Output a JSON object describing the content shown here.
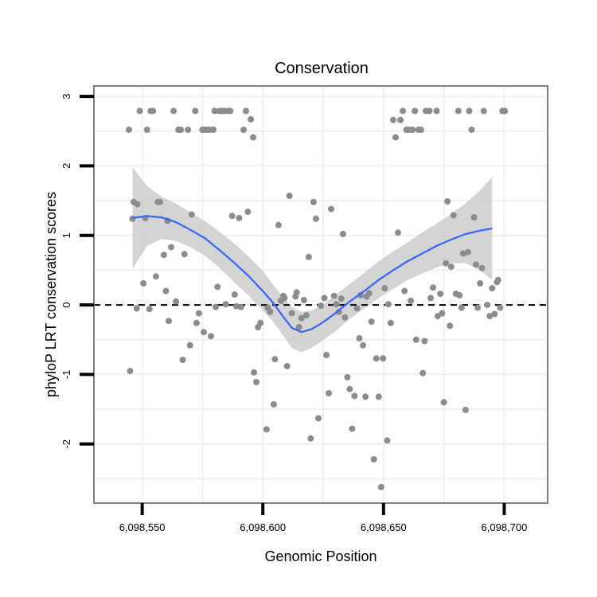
{
  "chart_data": {
    "type": "scatter",
    "title": "Conservation",
    "xlabel": "Genomic Position",
    "ylabel": "phyloP LRT conservation scores",
    "xlim": [
      6098530,
      6098718
    ],
    "ylim": [
      -2.85,
      3.15
    ],
    "x_ticks": [
      {
        "value": 6098550,
        "label": "6,098,550"
      },
      {
        "value": 6098600,
        "label": "6,098,600"
      },
      {
        "value": 6098650,
        "label": "6,098,650"
      },
      {
        "value": 6098700,
        "label": "6,098,700"
      }
    ],
    "y_ticks": [
      {
        "value": -2,
        "label": "-2"
      },
      {
        "value": -1,
        "label": "-1"
      },
      {
        "value": 0,
        "label": "0"
      },
      {
        "value": 1,
        "label": "1"
      },
      {
        "value": 2,
        "label": "2"
      },
      {
        "value": 3,
        "label": "3"
      }
    ],
    "reference_line": {
      "y": 0,
      "style": "dashed"
    },
    "grid": true,
    "colors": {
      "points": "#8c8c8c",
      "smooth_line": "#3366ff",
      "confidence_band": "#cccccc",
      "reference_line": "#000000",
      "panel_border": "#7f7f7f",
      "gridlines": "#f0f0f0"
    },
    "points": [
      {
        "x": 6098544.5,
        "y": 2.52
      },
      {
        "x": 6098545,
        "y": -0.95
      },
      {
        "x": 6098546,
        "y": 1.24
      },
      {
        "x": 6098546.5,
        "y": 1.48
      },
      {
        "x": 6098548,
        "y": 1.45
      },
      {
        "x": 6098547.7,
        "y": -0.05
      },
      {
        "x": 6098549,
        "y": 2.79
      },
      {
        "x": 6098550.5,
        "y": 0.31
      },
      {
        "x": 6098551.3,
        "y": 1.25
      },
      {
        "x": 6098552,
        "y": 2.52
      },
      {
        "x": 6098553,
        "y": -0.06
      },
      {
        "x": 6098553.5,
        "y": 2.79
      },
      {
        "x": 6098554.5,
        "y": 2.79
      },
      {
        "x": 6098555.7,
        "y": 0.41
      },
      {
        "x": 6098556.5,
        "y": 1.48
      },
      {
        "x": 6098557.3,
        "y": 1.48
      },
      {
        "x": 6098559,
        "y": 0.72
      },
      {
        "x": 6098559.8,
        "y": 0.2
      },
      {
        "x": 6098560.5,
        "y": 1.21
      },
      {
        "x": 6098561,
        "y": -0.23
      },
      {
        "x": 6098562,
        "y": 0.83
      },
      {
        "x": 6098563,
        "y": 2.79
      },
      {
        "x": 6098564,
        "y": 0.05
      },
      {
        "x": 6098565,
        "y": 2.52
      },
      {
        "x": 6098566,
        "y": 2.52
      },
      {
        "x": 6098566.8,
        "y": -0.79
      },
      {
        "x": 6098567.5,
        "y": 0.73
      },
      {
        "x": 6098569,
        "y": 2.52
      },
      {
        "x": 6098569.8,
        "y": -0.58
      },
      {
        "x": 6098570.5,
        "y": 1.3
      },
      {
        "x": 6098572,
        "y": 2.79
      },
      {
        "x": 6098572.5,
        "y": -0.26
      },
      {
        "x": 6098573.5,
        "y": -0.12
      },
      {
        "x": 6098575,
        "y": 2.52
      },
      {
        "x": 6098575.5,
        "y": -0.39
      },
      {
        "x": 6098576,
        "y": 2.52
      },
      {
        "x": 6098577,
        "y": 2.52
      },
      {
        "x": 6098578,
        "y": 2.52
      },
      {
        "x": 6098578.5,
        "y": -0.45
      },
      {
        "x": 6098579.5,
        "y": 2.52
      },
      {
        "x": 6098580,
        "y": 2.79
      },
      {
        "x": 6098580.5,
        "y": -0.03
      },
      {
        "x": 6098581.2,
        "y": 0.26
      },
      {
        "x": 6098582,
        "y": 2.79
      },
      {
        "x": 6098583,
        "y": 2.79
      },
      {
        "x": 6098584,
        "y": 2.79
      },
      {
        "x": 6098584.6,
        "y": 0.01
      },
      {
        "x": 6098585.5,
        "y": 2.79
      },
      {
        "x": 6098586.5,
        "y": 2.79
      },
      {
        "x": 6098587.3,
        "y": 1.28
      },
      {
        "x": 6098588.3,
        "y": 0.15
      },
      {
        "x": 6098589,
        "y": -0.02
      },
      {
        "x": 6098590.2,
        "y": 1.25
      },
      {
        "x": 6098591,
        "y": -0.03
      },
      {
        "x": 6098592,
        "y": 2.52
      },
      {
        "x": 6098593,
        "y": 2.79
      },
      {
        "x": 6098593.8,
        "y": 1.34
      },
      {
        "x": 6098595,
        "y": 2.67
      },
      {
        "x": 6098596,
        "y": 2.41
      },
      {
        "x": 6098596.3,
        "y": -0.97
      },
      {
        "x": 6098597.3,
        "y": -1.11
      },
      {
        "x": 6098598,
        "y": -0.32
      },
      {
        "x": 6098599,
        "y": -0.26
      },
      {
        "x": 6098601.5,
        "y": -1.79
      },
      {
        "x": 6098602,
        "y": -0.04
      },
      {
        "x": 6098603,
        "y": -0.1
      },
      {
        "x": 6098604.5,
        "y": -1.43
      },
      {
        "x": 6098605,
        "y": -0.78
      },
      {
        "x": 6098606.5,
        "y": 1.15
      },
      {
        "x": 6098607.5,
        "y": 0.06
      },
      {
        "x": 6098608.5,
        "y": 0.13
      },
      {
        "x": 6098609,
        "y": 0.1
      },
      {
        "x": 6098610,
        "y": -0.88
      },
      {
        "x": 6098611,
        "y": 1.57
      },
      {
        "x": 6098612,
        "y": -0.12
      },
      {
        "x": 6098613.5,
        "y": 0.12
      },
      {
        "x": 6098614,
        "y": 0.18
      },
      {
        "x": 6098615,
        "y": -0.32
      },
      {
        "x": 6098616,
        "y": -0.19
      },
      {
        "x": 6098617,
        "y": 0.07
      },
      {
        "x": 6098618,
        "y": -0.15
      },
      {
        "x": 6098619,
        "y": 0.69
      },
      {
        "x": 6098619.8,
        "y": -1.92
      },
      {
        "x": 6098621,
        "y": 1.48
      },
      {
        "x": 6098622,
        "y": 1.24
      },
      {
        "x": 6098623,
        "y": -1.63
      },
      {
        "x": 6098624,
        "y": -0.01
      },
      {
        "x": 6098625.5,
        "y": 0.1
      },
      {
        "x": 6098626.3,
        "y": -0.72
      },
      {
        "x": 6098627.3,
        "y": -1.27
      },
      {
        "x": 6098628.3,
        "y": 1.38
      },
      {
        "x": 6098629.5,
        "y": 0.13
      },
      {
        "x": 6098630.5,
        "y": 0.01
      },
      {
        "x": 6098631.5,
        "y": -0.1
      },
      {
        "x": 6098632.5,
        "y": 0.09
      },
      {
        "x": 6098633.2,
        "y": 1.02
      },
      {
        "x": 6098634,
        "y": -0.18
      },
      {
        "x": 6098635,
        "y": -1.04
      },
      {
        "x": 6098636,
        "y": -1.21
      },
      {
        "x": 6098637,
        "y": -1.78
      },
      {
        "x": 6098638,
        "y": -1.31
      },
      {
        "x": 6098639,
        "y": -0.05
      },
      {
        "x": 6098640,
        "y": -0.48
      },
      {
        "x": 6098640.5,
        "y": 0.14
      },
      {
        "x": 6098641.5,
        "y": -0.58
      },
      {
        "x": 6098642.5,
        "y": -1.32
      },
      {
        "x": 6098643,
        "y": 0.12
      },
      {
        "x": 6098644,
        "y": 0.17
      },
      {
        "x": 6098645,
        "y": -0.24
      },
      {
        "x": 6098646,
        "y": -2.22
      },
      {
        "x": 6098647,
        "y": -0.77
      },
      {
        "x": 6098648,
        "y": -1.32
      },
      {
        "x": 6098649,
        "y": -2.62
      },
      {
        "x": 6098649.8,
        "y": -0.77
      },
      {
        "x": 6098650.5,
        "y": 0.24
      },
      {
        "x": 6098651.5,
        "y": -1.95
      },
      {
        "x": 6098652,
        "y": 0.01
      },
      {
        "x": 6098653,
        "y": -0.26
      },
      {
        "x": 6098654,
        "y": 2.66
      },
      {
        "x": 6098655,
        "y": 2.41
      },
      {
        "x": 6098656,
        "y": 1.04
      },
      {
        "x": 6098657,
        "y": 2.66
      },
      {
        "x": 6098658,
        "y": 2.79
      },
      {
        "x": 6098658.7,
        "y": 0.2
      },
      {
        "x": 6098659.5,
        "y": 2.52
      },
      {
        "x": 6098660.5,
        "y": 2.52
      },
      {
        "x": 6098661.3,
        "y": 0.06
      },
      {
        "x": 6098662,
        "y": 2.52
      },
      {
        "x": 6098663,
        "y": 2.79
      },
      {
        "x": 6098663.5,
        "y": -0.5
      },
      {
        "x": 6098664.5,
        "y": 2.52
      },
      {
        "x": 6098665.5,
        "y": 2.52
      },
      {
        "x": 6098666.3,
        "y": -0.98
      },
      {
        "x": 6098667,
        "y": -0.52
      },
      {
        "x": 6098667.5,
        "y": 2.79
      },
      {
        "x": 6098669,
        "y": 2.79
      },
      {
        "x": 6098669.5,
        "y": 0.1
      },
      {
        "x": 6098670.5,
        "y": 0.25
      },
      {
        "x": 6098672,
        "y": 2.79
      },
      {
        "x": 6098672.5,
        "y": -0.16
      },
      {
        "x": 6098673.5,
        "y": 0.16
      },
      {
        "x": 6098674.3,
        "y": -0.12
      },
      {
        "x": 6098675,
        "y": -1.4
      },
      {
        "x": 6098675.8,
        "y": 0.6
      },
      {
        "x": 6098676.5,
        "y": 1.49
      },
      {
        "x": 6098677.5,
        "y": -0.3
      },
      {
        "x": 6098678,
        "y": 0.55
      },
      {
        "x": 6098679,
        "y": 1.29
      },
      {
        "x": 6098680,
        "y": 0.16
      },
      {
        "x": 6098681,
        "y": 2.79
      },
      {
        "x": 6098681.5,
        "y": 0.14
      },
      {
        "x": 6098682.3,
        "y": -0.04
      },
      {
        "x": 6098683,
        "y": 0.74
      },
      {
        "x": 6098684,
        "y": -1.51
      },
      {
        "x": 6098685,
        "y": 0.76
      },
      {
        "x": 6098685.5,
        "y": 2.79
      },
      {
        "x": 6098686.5,
        "y": 2.52
      },
      {
        "x": 6098687.5,
        "y": 1.26
      },
      {
        "x": 6098688.3,
        "y": 0.58
      },
      {
        "x": 6098689,
        "y": -0.04
      },
      {
        "x": 6098690,
        "y": 0.31
      },
      {
        "x": 6098690.8,
        "y": 0.53
      },
      {
        "x": 6098691.5,
        "y": 2.79
      },
      {
        "x": 6098693,
        "y": 0.0
      },
      {
        "x": 6098694,
        "y": -0.16
      },
      {
        "x": 6098695,
        "y": 0.24
      },
      {
        "x": 6098696,
        "y": -0.13
      },
      {
        "x": 6098697,
        "y": 0.33
      },
      {
        "x": 6098697.5,
        "y": 0.36
      },
      {
        "x": 6098698.3,
        "y": -0.04
      },
      {
        "x": 6098699.3,
        "y": 2.79
      },
      {
        "x": 6098700.3,
        "y": 2.79
      }
    ],
    "smooth": [
      {
        "x": 6098546,
        "y": 1.25,
        "lo": 0.52,
        "hi": 1.98
      },
      {
        "x": 6098552,
        "y": 1.28,
        "lo": 0.85,
        "hi": 1.71
      },
      {
        "x": 6098558,
        "y": 1.26,
        "lo": 0.95,
        "hi": 1.56
      },
      {
        "x": 6098564,
        "y": 1.19,
        "lo": 0.92,
        "hi": 1.46
      },
      {
        "x": 6098570,
        "y": 1.08,
        "lo": 0.83,
        "hi": 1.33
      },
      {
        "x": 6098576,
        "y": 0.96,
        "lo": 0.71,
        "hi": 1.21
      },
      {
        "x": 6098582,
        "y": 0.79,
        "lo": 0.53,
        "hi": 1.05
      },
      {
        "x": 6098588,
        "y": 0.61,
        "lo": 0.33,
        "hi": 0.89
      },
      {
        "x": 6098594,
        "y": 0.42,
        "lo": 0.14,
        "hi": 0.7
      },
      {
        "x": 6098600,
        "y": 0.2,
        "lo": -0.08,
        "hi": 0.49
      },
      {
        "x": 6098604,
        "y": 0.04,
        "lo": -0.23,
        "hi": 0.3
      },
      {
        "x": 6098608,
        "y": -0.15,
        "lo": -0.42,
        "hi": 0.13
      },
      {
        "x": 6098612,
        "y": -0.33,
        "lo": -0.62,
        "hi": -0.03
      },
      {
        "x": 6098616,
        "y": -0.39,
        "lo": -0.68,
        "hi": -0.1
      },
      {
        "x": 6098620,
        "y": -0.35,
        "lo": -0.62,
        "hi": -0.08
      },
      {
        "x": 6098624,
        "y": -0.27,
        "lo": -0.53,
        "hi": -0.02
      },
      {
        "x": 6098630,
        "y": -0.12,
        "lo": -0.38,
        "hi": 0.14
      },
      {
        "x": 6098636,
        "y": 0.05,
        "lo": -0.2,
        "hi": 0.3
      },
      {
        "x": 6098642,
        "y": 0.2,
        "lo": -0.05,
        "hi": 0.46
      },
      {
        "x": 6098648,
        "y": 0.36,
        "lo": 0.1,
        "hi": 0.63
      },
      {
        "x": 6098654,
        "y": 0.5,
        "lo": 0.23,
        "hi": 0.77
      },
      {
        "x": 6098660,
        "y": 0.63,
        "lo": 0.36,
        "hi": 0.9
      },
      {
        "x": 6098666,
        "y": 0.74,
        "lo": 0.45,
        "hi": 1.04
      },
      {
        "x": 6098672,
        "y": 0.85,
        "lo": 0.54,
        "hi": 1.17
      },
      {
        "x": 6098678,
        "y": 0.94,
        "lo": 0.6,
        "hi": 1.31
      },
      {
        "x": 6098684,
        "y": 1.02,
        "lo": 0.6,
        "hi": 1.46
      },
      {
        "x": 6098690,
        "y": 1.07,
        "lo": 0.5,
        "hi": 1.65
      },
      {
        "x": 6098695,
        "y": 1.1,
        "lo": 0.36,
        "hi": 1.84
      }
    ]
  }
}
